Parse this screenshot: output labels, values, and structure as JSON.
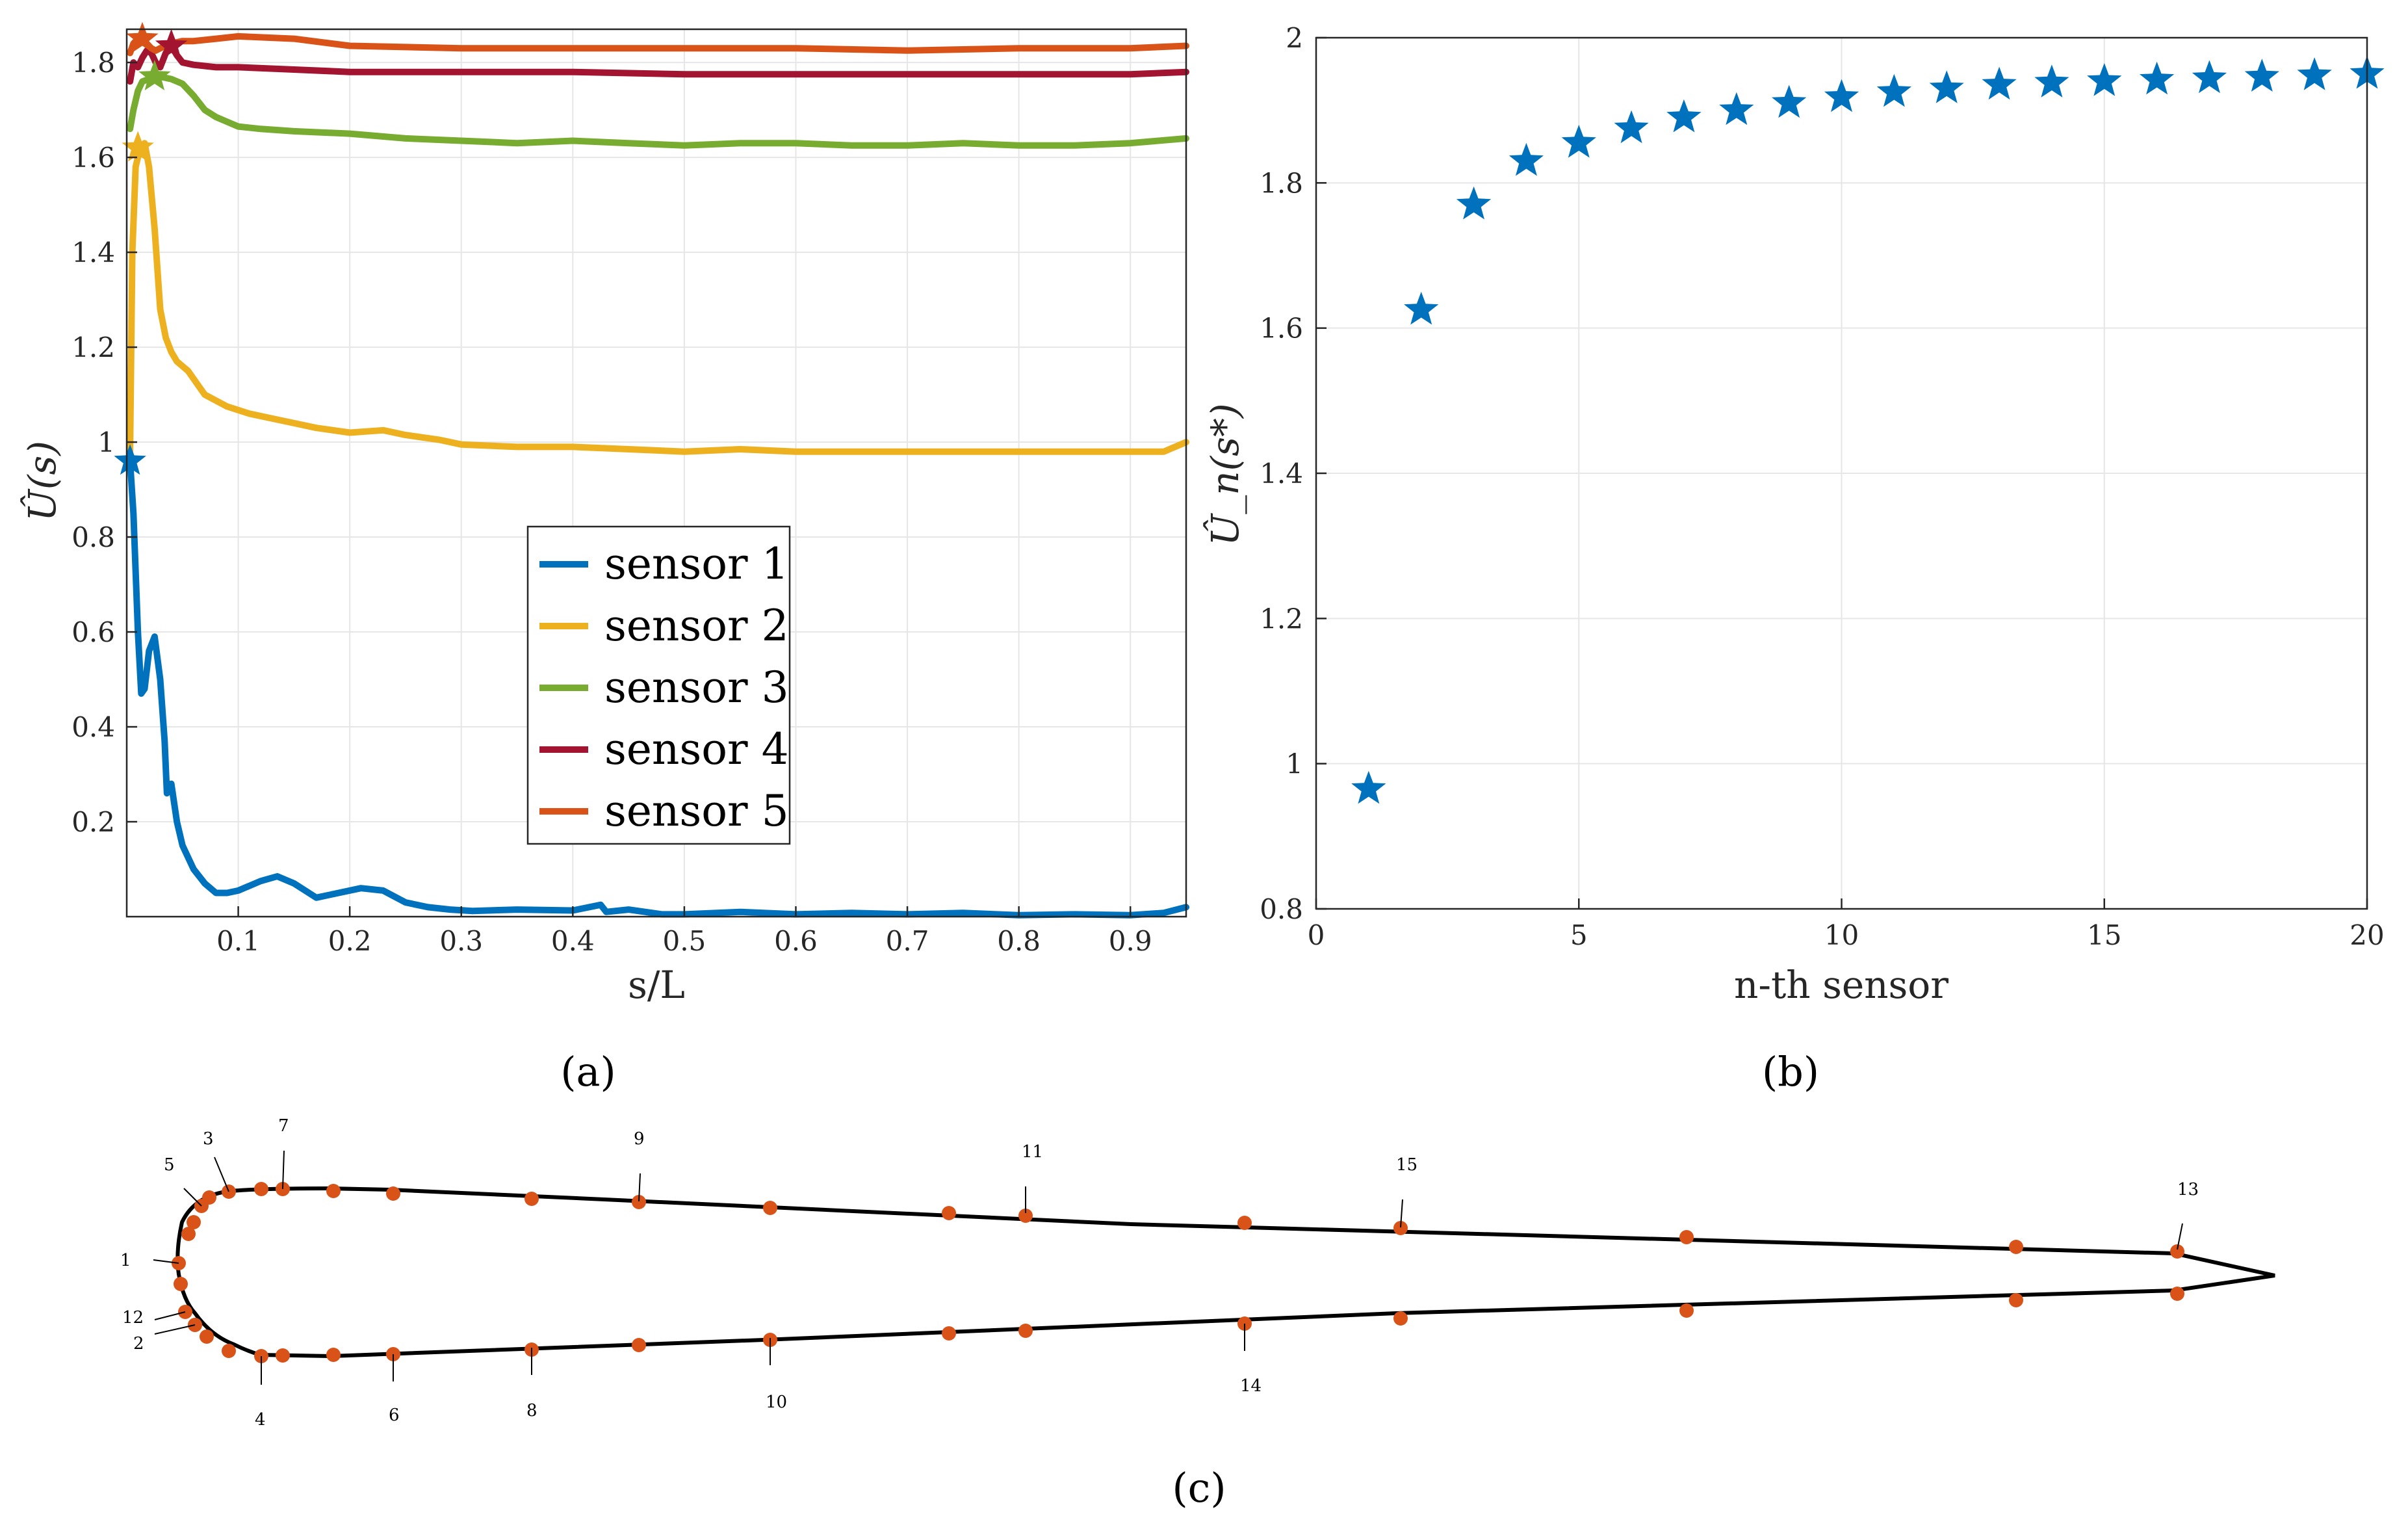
{
  "figure_labels": {
    "a": "(a)",
    "b": "(b)",
    "c": "(c)"
  },
  "colors": {
    "sensor1": "#0072BD",
    "sensor2": "#EDB120",
    "sensor3": "#77AC30",
    "sensor4": "#A2142F",
    "sensor5": "#D95319",
    "star_b": "#0072BD",
    "dot_c": "#D95319",
    "outline_c": "#000000"
  },
  "chart_data": [
    {
      "id": "a",
      "type": "line",
      "title": "",
      "xlabel": "s/L",
      "ylabel": "Û(s)",
      "xlim": [
        0.0,
        0.95
      ],
      "ylim": [
        0.0,
        1.87
      ],
      "xticks": [
        0.1,
        0.2,
        0.3,
        0.4,
        0.5,
        0.6,
        0.7,
        0.8,
        0.9
      ],
      "yticks": [
        0.2,
        0.4,
        0.6,
        0.8,
        1.0,
        1.2,
        1.4,
        1.6,
        1.8
      ],
      "xtick_labels": [
        "0.1",
        "0.2",
        "0.3",
        "0.4",
        "0.5",
        "0.6",
        "0.7",
        "0.8",
        "0.9"
      ],
      "ytick_labels": [
        "0.2",
        "0.4",
        "0.6",
        "0.8",
        "1",
        "1.2",
        "1.4",
        "1.6",
        "1.8"
      ],
      "grid": true,
      "legend_position": "center-right",
      "series": [
        {
          "name": "sensor 1",
          "x": [
            0.003,
            0.006,
            0.01,
            0.013,
            0.016,
            0.02,
            0.025,
            0.03,
            0.034,
            0.036,
            0.04,
            0.045,
            0.05,
            0.06,
            0.07,
            0.08,
            0.09,
            0.1,
            0.12,
            0.135,
            0.15,
            0.17,
            0.19,
            0.21,
            0.23,
            0.25,
            0.27,
            0.29,
            0.31,
            0.35,
            0.4,
            0.425,
            0.43,
            0.45,
            0.48,
            0.5,
            0.55,
            0.6,
            0.65,
            0.7,
            0.75,
            0.8,
            0.85,
            0.9,
            0.93,
            0.95
          ],
          "y": [
            0.96,
            0.85,
            0.6,
            0.47,
            0.48,
            0.56,
            0.59,
            0.5,
            0.37,
            0.26,
            0.28,
            0.2,
            0.15,
            0.1,
            0.07,
            0.05,
            0.05,
            0.055,
            0.075,
            0.085,
            0.07,
            0.04,
            0.05,
            0.06,
            0.055,
            0.03,
            0.02,
            0.015,
            0.012,
            0.015,
            0.013,
            0.025,
            0.01,
            0.015,
            0.005,
            0.005,
            0.01,
            0.005,
            0.008,
            0.005,
            0.008,
            0.003,
            0.005,
            0.003,
            0.008,
            0.02
          ]
        },
        {
          "name": "sensor 2",
          "x": [
            0.003,
            0.005,
            0.008,
            0.012,
            0.016,
            0.02,
            0.025,
            0.03,
            0.035,
            0.04,
            0.045,
            0.055,
            0.07,
            0.09,
            0.11,
            0.13,
            0.15,
            0.17,
            0.2,
            0.23,
            0.25,
            0.28,
            0.3,
            0.35,
            0.4,
            0.45,
            0.5,
            0.55,
            0.6,
            0.65,
            0.7,
            0.75,
            0.8,
            0.85,
            0.9,
            0.93,
            0.95
          ],
          "y": [
            0.98,
            1.4,
            1.58,
            1.62,
            1.63,
            1.58,
            1.45,
            1.28,
            1.22,
            1.19,
            1.17,
            1.15,
            1.1,
            1.075,
            1.06,
            1.05,
            1.04,
            1.03,
            1.02,
            1.025,
            1.015,
            1.005,
            0.995,
            0.99,
            0.99,
            0.985,
            0.98,
            0.985,
            0.98,
            0.98,
            0.98,
            0.98,
            0.98,
            0.98,
            0.98,
            0.98,
            1.0
          ]
        },
        {
          "name": "sensor 3",
          "x": [
            0.003,
            0.006,
            0.01,
            0.014,
            0.02,
            0.03,
            0.04,
            0.05,
            0.06,
            0.07,
            0.08,
            0.09,
            0.1,
            0.12,
            0.15,
            0.2,
            0.25,
            0.3,
            0.35,
            0.4,
            0.45,
            0.5,
            0.55,
            0.6,
            0.65,
            0.7,
            0.75,
            0.8,
            0.85,
            0.9,
            0.95
          ],
          "y": [
            1.66,
            1.7,
            1.74,
            1.76,
            1.765,
            1.77,
            1.765,
            1.755,
            1.73,
            1.7,
            1.685,
            1.675,
            1.665,
            1.66,
            1.655,
            1.65,
            1.64,
            1.635,
            1.63,
            1.635,
            1.63,
            1.625,
            1.63,
            1.63,
            1.625,
            1.625,
            1.63,
            1.625,
            1.625,
            1.63,
            1.64
          ]
        },
        {
          "name": "sensor 4",
          "x": [
            0.003,
            0.006,
            0.01,
            0.014,
            0.018,
            0.022,
            0.026,
            0.03,
            0.035,
            0.04,
            0.045,
            0.05,
            0.06,
            0.08,
            0.1,
            0.15,
            0.2,
            0.3,
            0.4,
            0.5,
            0.6,
            0.7,
            0.8,
            0.9,
            0.95
          ],
          "y": [
            1.76,
            1.8,
            1.79,
            1.81,
            1.825,
            1.82,
            1.8,
            1.79,
            1.82,
            1.835,
            1.815,
            1.8,
            1.795,
            1.79,
            1.79,
            1.785,
            1.78,
            1.78,
            1.78,
            1.775,
            1.775,
            1.775,
            1.775,
            1.775,
            1.78
          ]
        },
        {
          "name": "sensor 5",
          "x": [
            0.003,
            0.006,
            0.01,
            0.014,
            0.018,
            0.022,
            0.026,
            0.03,
            0.04,
            0.05,
            0.06,
            0.08,
            0.1,
            0.15,
            0.2,
            0.3,
            0.4,
            0.5,
            0.6,
            0.7,
            0.8,
            0.9,
            0.95
          ],
          "y": [
            1.82,
            1.84,
            1.85,
            1.85,
            1.84,
            1.83,
            1.825,
            1.83,
            1.84,
            1.845,
            1.845,
            1.85,
            1.855,
            1.85,
            1.835,
            1.83,
            1.83,
            1.83,
            1.83,
            1.825,
            1.83,
            1.83,
            1.835
          ]
        }
      ],
      "markers": [
        {
          "series": "sensor 1",
          "x": 0.003,
          "y": 0.96
        },
        {
          "series": "sensor 2",
          "x": 0.01,
          "y": 1.62
        },
        {
          "series": "sensor 3",
          "x": 0.025,
          "y": 1.77
        },
        {
          "series": "sensor 4",
          "x": 0.04,
          "y": 1.835
        },
        {
          "series": "sensor 5",
          "x": 0.014,
          "y": 1.85
        }
      ]
    },
    {
      "id": "b",
      "type": "scatter",
      "title": "",
      "xlabel": "n-th sensor",
      "ylabel": "Û_n(s*)",
      "xlim": [
        0,
        20
      ],
      "ylim": [
        0.8,
        2.0
      ],
      "xticks": [
        0,
        5,
        10,
        15,
        20
      ],
      "yticks": [
        0.8,
        1.0,
        1.2,
        1.4,
        1.6,
        1.8,
        2.0
      ],
      "xtick_labels": [
        "0",
        "5",
        "10",
        "15",
        "20"
      ],
      "ytick_labels": [
        "0.8",
        "1",
        "1.2",
        "1.4",
        "1.6",
        "1.8",
        "2"
      ],
      "grid": true,
      "x": [
        1,
        2,
        3,
        4,
        5,
        6,
        7,
        8,
        9,
        10,
        11,
        12,
        13,
        14,
        15,
        16,
        17,
        18,
        19,
        20
      ],
      "y": [
        0.965,
        1.625,
        1.77,
        1.83,
        1.855,
        1.875,
        1.89,
        1.9,
        1.91,
        1.918,
        1.925,
        1.93,
        1.935,
        1.938,
        1.94,
        1.942,
        1.944,
        1.946,
        1.948,
        1.95
      ]
    }
  ],
  "diagram_c": {
    "description_labels": [
      "1",
      "2",
      "3",
      "4",
      "5",
      "6",
      "7",
      "8",
      "9",
      "10",
      "11",
      "12",
      "13",
      "14",
      "15"
    ]
  }
}
